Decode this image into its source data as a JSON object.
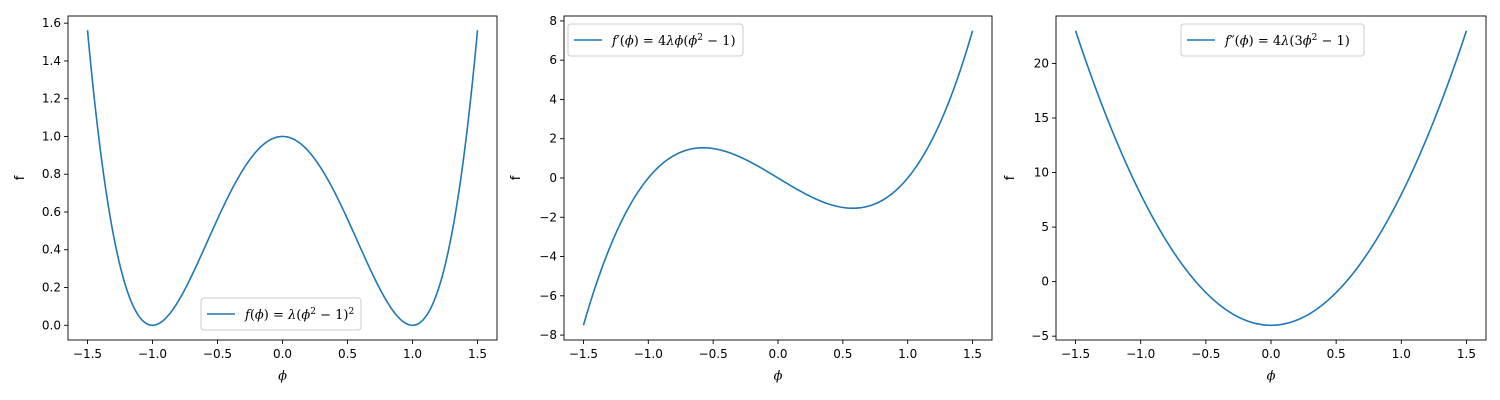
{
  "chart_data": [
    {
      "type": "line",
      "function": "f(phi) = lambda*(phi^2 - 1)^2",
      "xlabel": "ϕ",
      "ylabel": "f",
      "xlim": [
        -1.65,
        1.65
      ],
      "ylim": [
        -0.078,
        1.638
      ],
      "xticks": [
        -1.5,
        -1.0,
        -0.5,
        0.0,
        0.5,
        1.0,
        1.5
      ],
      "xtick_labels": [
        "−1.5",
        "−1.0",
        "−0.5",
        "0.0",
        "0.5",
        "1.0",
        "1.5"
      ],
      "yticks": [
        0.0,
        0.2,
        0.4,
        0.6,
        0.8,
        1.0,
        1.2,
        1.4,
        1.6
      ],
      "ytick_labels": [
        "0.0",
        "0.2",
        "0.4",
        "0.6",
        "0.8",
        "1.0",
        "1.2",
        "1.4",
        "1.6"
      ],
      "legend_placement": "lower center",
      "legend_label": "f(ϕ) = λ(ϕ² − 1)²",
      "series": [
        {
          "name": "f(ϕ) = λ(ϕ² − 1)²",
          "color": "#1f77b4",
          "x": [
            -1.5,
            -1.4,
            -1.3,
            -1.2,
            -1.1,
            -1.0,
            -0.9,
            -0.8,
            -0.7,
            -0.6,
            -0.5,
            -0.4,
            -0.3,
            -0.2,
            -0.1,
            0.0,
            0.1,
            0.2,
            0.3,
            0.4,
            0.5,
            0.6,
            0.7,
            0.8,
            0.9,
            1.0,
            1.1,
            1.2,
            1.3,
            1.4,
            1.5
          ],
          "y": [
            1.5625,
            0.9216,
            0.4761,
            0.1936,
            0.0441,
            0.0,
            0.0361,
            0.1296,
            0.2601,
            0.4096,
            0.5625,
            0.7056,
            0.8281,
            0.9216,
            0.9801,
            1.0,
            0.9801,
            0.9216,
            0.8281,
            0.7056,
            0.5625,
            0.4096,
            0.2601,
            0.1296,
            0.0361,
            0.0,
            0.0441,
            0.1936,
            0.4761,
            0.9216,
            1.5625
          ]
        }
      ]
    },
    {
      "type": "line",
      "function": "f'(phi) = 4*lambda*phi*(phi^2 - 1)",
      "xlabel": "ϕ",
      "ylabel": "f",
      "xlim": [
        -1.65,
        1.65
      ],
      "ylim": [
        -8.25,
        8.25
      ],
      "xticks": [
        -1.5,
        -1.0,
        -0.5,
        0.0,
        0.5,
        1.0,
        1.5
      ],
      "xtick_labels": [
        "−1.5",
        "−1.0",
        "−0.5",
        "0.0",
        "0.5",
        "1.0",
        "1.5"
      ],
      "yticks": [
        -8,
        -6,
        -4,
        -2,
        0,
        2,
        4,
        6,
        8
      ],
      "ytick_labels": [
        "−8",
        "−6",
        "−4",
        "−2",
        "0",
        "2",
        "4",
        "6",
        "8"
      ],
      "legend_placement": "upper left",
      "legend_label": "f′(ϕ) = 4λϕ(ϕ² − 1)",
      "series": [
        {
          "name": "f′(ϕ) = 4λϕ(ϕ² − 1)",
          "color": "#1f77b4",
          "x": [
            -1.5,
            -1.4,
            -1.3,
            -1.2,
            -1.1,
            -1.0,
            -0.9,
            -0.8,
            -0.7,
            -0.6,
            -0.5,
            -0.4,
            -0.3,
            -0.2,
            -0.1,
            0.0,
            0.1,
            0.2,
            0.3,
            0.4,
            0.5,
            0.6,
            0.7,
            0.8,
            0.9,
            1.0,
            1.1,
            1.2,
            1.3,
            1.4,
            1.5
          ],
          "y": [
            -7.5,
            -5.376,
            -3.588,
            -2.112,
            -0.924,
            0.0,
            0.684,
            1.152,
            1.428,
            1.536,
            1.5,
            1.344,
            1.092,
            0.768,
            0.396,
            0.0,
            -0.396,
            -0.768,
            -1.092,
            -1.344,
            -1.5,
            -1.536,
            -1.428,
            -1.152,
            -0.684,
            0.0,
            0.924,
            2.112,
            3.588,
            5.376,
            7.5
          ]
        }
      ]
    },
    {
      "type": "line",
      "function": "f''(phi) = 4*lambda*(3*phi^2 - 1)",
      "xlabel": "ϕ",
      "ylabel": "f",
      "xlim": [
        -1.65,
        1.65
      ],
      "ylim": [
        -5.35,
        24.35
      ],
      "xticks": [
        -1.5,
        -1.0,
        -0.5,
        0.0,
        0.5,
        1.0,
        1.5
      ],
      "xtick_labels": [
        "−1.5",
        "−1.0",
        "−0.5",
        "0.0",
        "0.5",
        "1.0",
        "1.5"
      ],
      "yticks": [
        -5,
        0,
        5,
        10,
        15,
        20
      ],
      "ytick_labels": [
        "−5",
        "0",
        "5",
        "10",
        "15",
        "20"
      ],
      "legend_placement": "upper center",
      "legend_label": "f″(ϕ) = 4λ(3ϕ² − 1)",
      "series": [
        {
          "name": "f″(ϕ) = 4λ(3ϕ² − 1)",
          "color": "#1f77b4",
          "x": [
            -1.5,
            -1.4,
            -1.3,
            -1.2,
            -1.1,
            -1.0,
            -0.9,
            -0.8,
            -0.7,
            -0.6,
            -0.5,
            -0.4,
            -0.3,
            -0.2,
            -0.1,
            0.0,
            0.1,
            0.2,
            0.3,
            0.4,
            0.5,
            0.6,
            0.7,
            0.8,
            0.9,
            1.0,
            1.1,
            1.2,
            1.3,
            1.4,
            1.5
          ],
          "y": [
            23.0,
            19.52,
            16.28,
            13.28,
            10.52,
            8.0,
            5.72,
            3.68,
            1.88,
            0.32,
            -1.0,
            -2.08,
            -2.92,
            -3.52,
            -3.88,
            -4.0,
            -3.88,
            -3.52,
            -2.92,
            -2.08,
            -1.0,
            0.32,
            1.88,
            3.68,
            5.72,
            8.0,
            10.52,
            13.28,
            16.28,
            19.52,
            23.0
          ]
        }
      ]
    }
  ]
}
